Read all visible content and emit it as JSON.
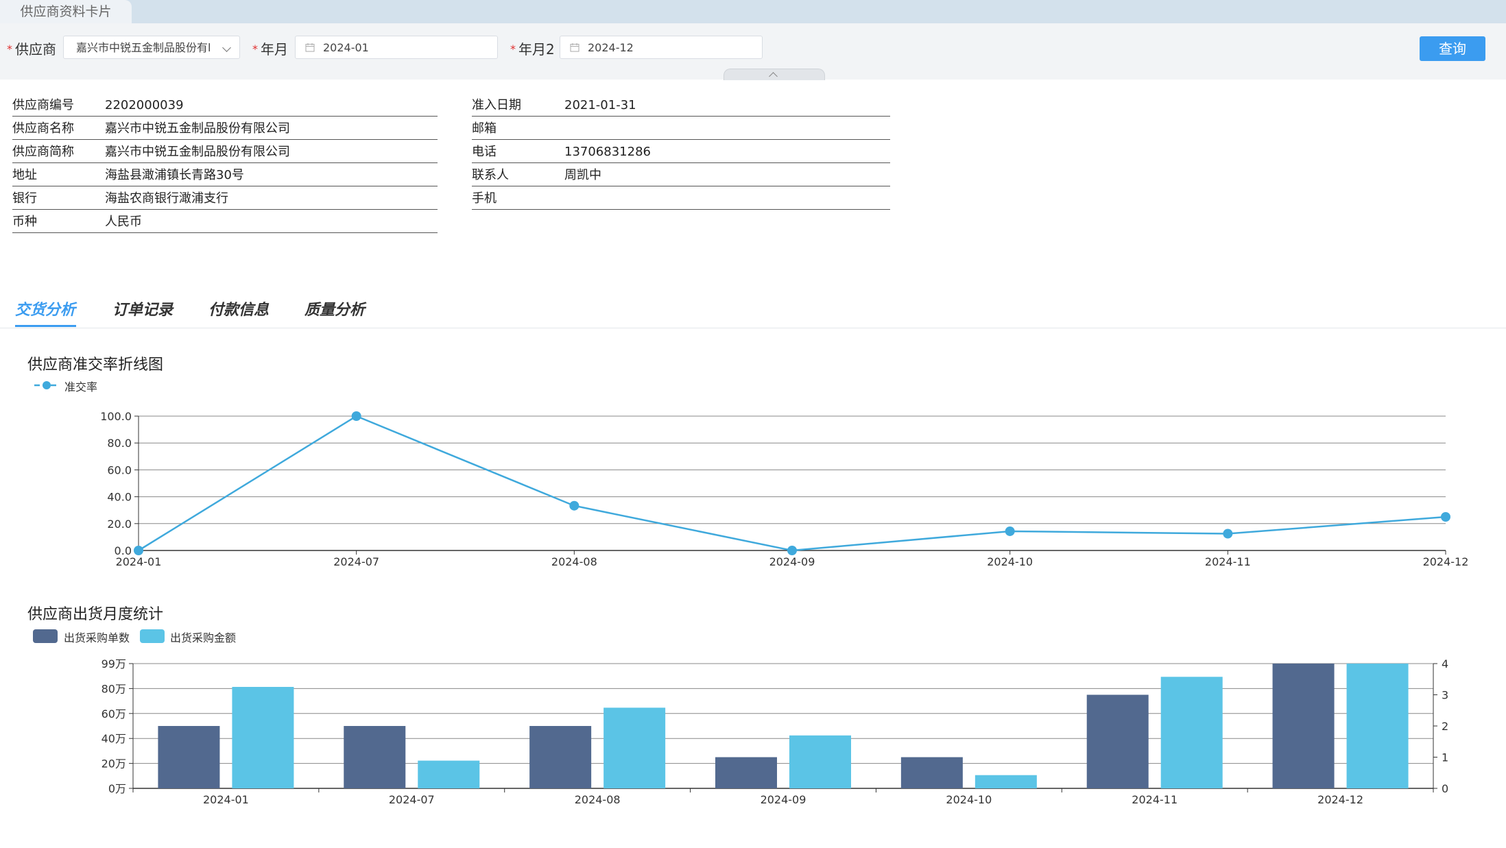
{
  "window": {
    "tab_title": "供应商资料卡片"
  },
  "filters": {
    "supplier_label": "供应商",
    "supplier_value": "嘉兴市中锐五金制品股份有l",
    "month_label": "年月",
    "month_value": "2024-01",
    "month2_label": "年月2",
    "month2_value": "2024-12",
    "query_label": "查询"
  },
  "supplier_info": {
    "left": [
      {
        "key": "供应商编号",
        "value": "2202000039"
      },
      {
        "key": "供应商名称",
        "value": "嘉兴市中锐五金制品股份有限公司"
      },
      {
        "key": "供应商简称",
        "value": "嘉兴市中锐五金制品股份有限公司"
      },
      {
        "key": "地址",
        "value": "海盐县澉浦镇长青路30号"
      },
      {
        "key": "银行",
        "value": "海盐农商银行澉浦支行"
      },
      {
        "key": "币种",
        "value": "人民币"
      }
    ],
    "right": [
      {
        "key": "准入日期",
        "value": "2021-01-31"
      },
      {
        "key": "邮箱",
        "value": ""
      },
      {
        "key": "电话",
        "value": "13706831286"
      },
      {
        "key": "联系人",
        "value": "周凯中"
      },
      {
        "key": "手机",
        "value": ""
      }
    ]
  },
  "detail_tabs": [
    {
      "label": "交货分析",
      "active": true
    },
    {
      "label": "订单记录",
      "active": false
    },
    {
      "label": "付款信息",
      "active": false
    },
    {
      "label": "质量分析",
      "active": false
    }
  ],
  "colors": {
    "accent": "#3b9cf0",
    "line": "#3fa9dc",
    "bar_count": "#52698f",
    "bar_amount": "#5bc4e6"
  },
  "chart_data": [
    {
      "type": "line",
      "title": "供应商准交率折线图",
      "legend_position": "top-left",
      "categories": [
        "2024-01",
        "2024-07",
        "2024-08",
        "2024-09",
        "2024-10",
        "2024-11",
        "2024-12"
      ],
      "series": [
        {
          "name": "准交率",
          "values": [
            0,
            100,
            33.3,
            0,
            14.3,
            12.5,
            25.0
          ]
        }
      ],
      "ylim": [
        0,
        100
      ],
      "yticks": [
        "0.0",
        "20.0",
        "40.0",
        "60.0",
        "80.0",
        "100.0"
      ],
      "grid": true
    },
    {
      "type": "bar",
      "title": "供应商出货月度统计",
      "legend_position": "top-left",
      "categories": [
        "2024-01",
        "2024-07",
        "2024-08",
        "2024-09",
        "2024-10",
        "2024-11",
        "2024-12"
      ],
      "series": [
        {
          "name": "出货采购单数",
          "axis": "right",
          "values": [
            2,
            2,
            2,
            1,
            1,
            3,
            4
          ]
        },
        {
          "name": "出货采购金额",
          "axis": "left",
          "values": [
            805000,
            220000,
            640000,
            420000,
            105000,
            885000,
            990000
          ]
        }
      ],
      "ylim_left": [
        0,
        990000
      ],
      "ylim_right": [
        0,
        4
      ],
      "yticks_left": [
        "0万",
        "20万",
        "40万",
        "60万",
        "80万",
        "99万"
      ],
      "yticks_right": [
        "0",
        "1",
        "2",
        "3",
        "4"
      ],
      "grid": true
    }
  ]
}
